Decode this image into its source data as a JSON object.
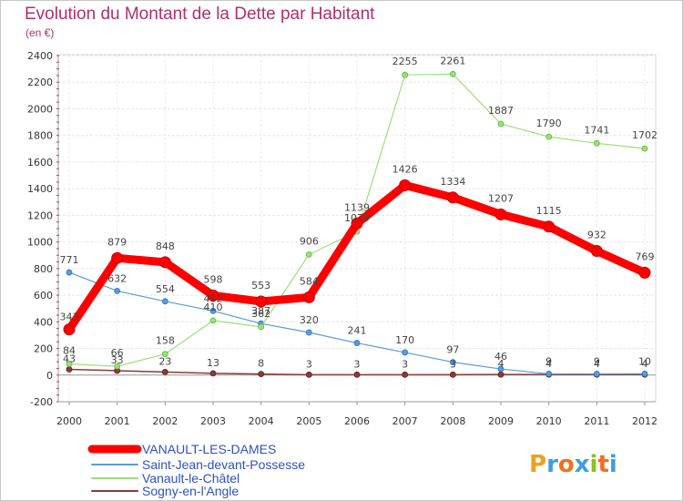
{
  "header": {
    "title": "Evolution du Montant de la Dette par Habitant",
    "subtitle": "(en €)"
  },
  "logo": {
    "text": "Proxiti",
    "colors": [
      "#f0a020",
      "#3aa0e0",
      "#f07020",
      "#3aa0e0",
      "#90c020",
      "#f07020",
      "#3aa0e0"
    ]
  },
  "chart_data": {
    "type": "line",
    "title": "Evolution du Montant de la Dette par Habitant",
    "ylabel": "(en €)",
    "x": [
      "2000",
      "2001",
      "2002",
      "2003",
      "2004",
      "2005",
      "2006",
      "2007",
      "2008",
      "2009",
      "2010",
      "2011",
      "2012"
    ],
    "ylim": [
      -200,
      2400
    ],
    "yticks": [
      -200,
      0,
      200,
      400,
      600,
      800,
      1000,
      1200,
      1400,
      1600,
      1800,
      2000,
      2200,
      2400
    ],
    "grid": true,
    "legend_position": "bottom-left",
    "series": [
      {
        "name": "VANAULT-LES-DAMES",
        "color": "#ff0000",
        "values": [
          343,
          879,
          848,
          598,
          553,
          584,
          1139,
          1426,
          1334,
          1207,
          1115,
          932,
          769
        ],
        "labels": [
          "343",
          "879",
          "848",
          "598",
          "553",
          "584",
          "1139",
          "1426",
          "1334",
          "1207",
          "1115",
          "932",
          "769"
        ]
      },
      {
        "name": "Saint-Jean-devant-Possesse",
        "color": "#5b9bd5",
        "values": [
          771,
          632,
          554,
          482,
          387,
          320,
          241,
          170,
          97,
          46,
          9,
          9,
          10
        ],
        "labels": [
          "771",
          "632",
          "554",
          "482",
          "387",
          "320",
          "241",
          "170",
          "97",
          "46",
          "9",
          "9",
          "10"
        ]
      },
      {
        "name": "Vanault-le-Châtel",
        "color": "#99e07a",
        "values": [
          84,
          66,
          158,
          410,
          362,
          906,
          1079,
          2255,
          2261,
          1887,
          1790,
          1741,
          1702
        ],
        "labels": [
          "84",
          "66",
          "158",
          "410",
          "362",
          "906",
          "1079",
          "2255",
          "2261",
          "1887",
          "1790",
          "1741",
          "1702"
        ]
      },
      {
        "name": "Sogny-en-l'Angle",
        "color": "#8b3a3a",
        "values": [
          43,
          33,
          23,
          13,
          8,
          3,
          3,
          3,
          3,
          4,
          4,
          4,
          4
        ],
        "labels": [
          "43",
          "33",
          "23",
          "13",
          "8",
          "3",
          "3",
          "3",
          "3",
          "4",
          "4",
          "4",
          "4"
        ]
      }
    ]
  }
}
